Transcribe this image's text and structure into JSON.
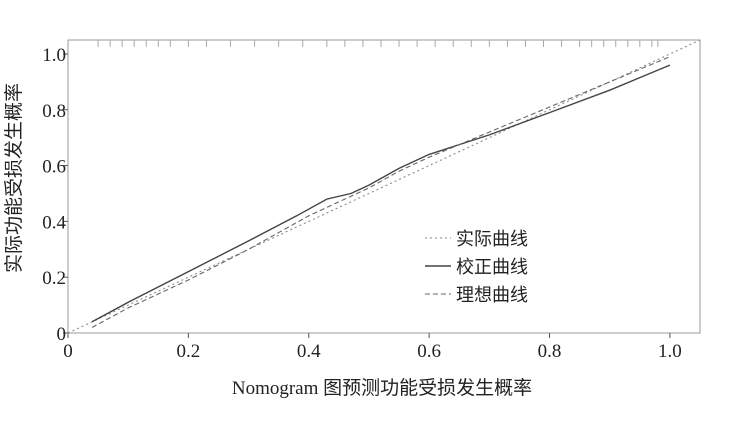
{
  "chart_data": {
    "type": "line",
    "title": "",
    "xlabel": "Nomogram 图预测功能受损发生概率",
    "ylabel": "实际功能受损发生概率",
    "xlim": [
      0,
      1.05
    ],
    "ylim": [
      0,
      1.05
    ],
    "x_ticks": [
      0,
      0.2,
      0.4,
      0.6,
      0.8,
      1.0
    ],
    "x_tick_labels": [
      "0",
      "0.2",
      "0.4",
      "0.6",
      "0.8",
      "1.0"
    ],
    "y_ticks": [
      0,
      0.2,
      0.4,
      0.6,
      0.8,
      1.0
    ],
    "y_tick_labels": [
      "0",
      "0.2",
      "0.4",
      "0.6",
      "0.8",
      "1.0"
    ],
    "grid": false,
    "legend_position": "lower-right",
    "rug_marks_top": [
      0.05,
      0.07,
      0.09,
      0.11,
      0.13,
      0.15,
      0.17,
      0.2,
      0.23,
      0.27,
      0.31,
      0.35,
      0.39,
      0.43,
      0.46,
      0.49,
      0.52,
      0.55,
      0.58,
      0.61,
      0.64,
      0.67,
      0.7,
      0.73,
      0.76,
      0.79,
      0.82,
      0.85,
      0.87,
      0.89,
      0.91,
      0.93,
      0.95,
      0.97,
      0.98
    ],
    "series": [
      {
        "name": "实际曲线",
        "style": "dotted",
        "color": "#8a8a8a",
        "x": [
          0,
          1.05
        ],
        "y": [
          0,
          1.05
        ]
      },
      {
        "name": "校正曲线",
        "style": "solid",
        "color": "#444444",
        "x": [
          0.04,
          0.1,
          0.2,
          0.3,
          0.38,
          0.43,
          0.47,
          0.5,
          0.55,
          0.6,
          0.7,
          0.8,
          0.9,
          1.0
        ],
        "y": [
          0.04,
          0.11,
          0.22,
          0.33,
          0.42,
          0.48,
          0.5,
          0.53,
          0.59,
          0.64,
          0.71,
          0.79,
          0.87,
          0.96
        ]
      },
      {
        "name": "理想曲线",
        "style": "dashed",
        "color": "#666666",
        "x": [
          0.04,
          0.1,
          0.2,
          0.3,
          0.4,
          0.45,
          0.5,
          0.55,
          0.6,
          0.7,
          0.8,
          0.9,
          1.0
        ],
        "y": [
          0.02,
          0.09,
          0.19,
          0.3,
          0.42,
          0.47,
          0.52,
          0.58,
          0.63,
          0.72,
          0.81,
          0.9,
          0.99
        ]
      }
    ]
  }
}
